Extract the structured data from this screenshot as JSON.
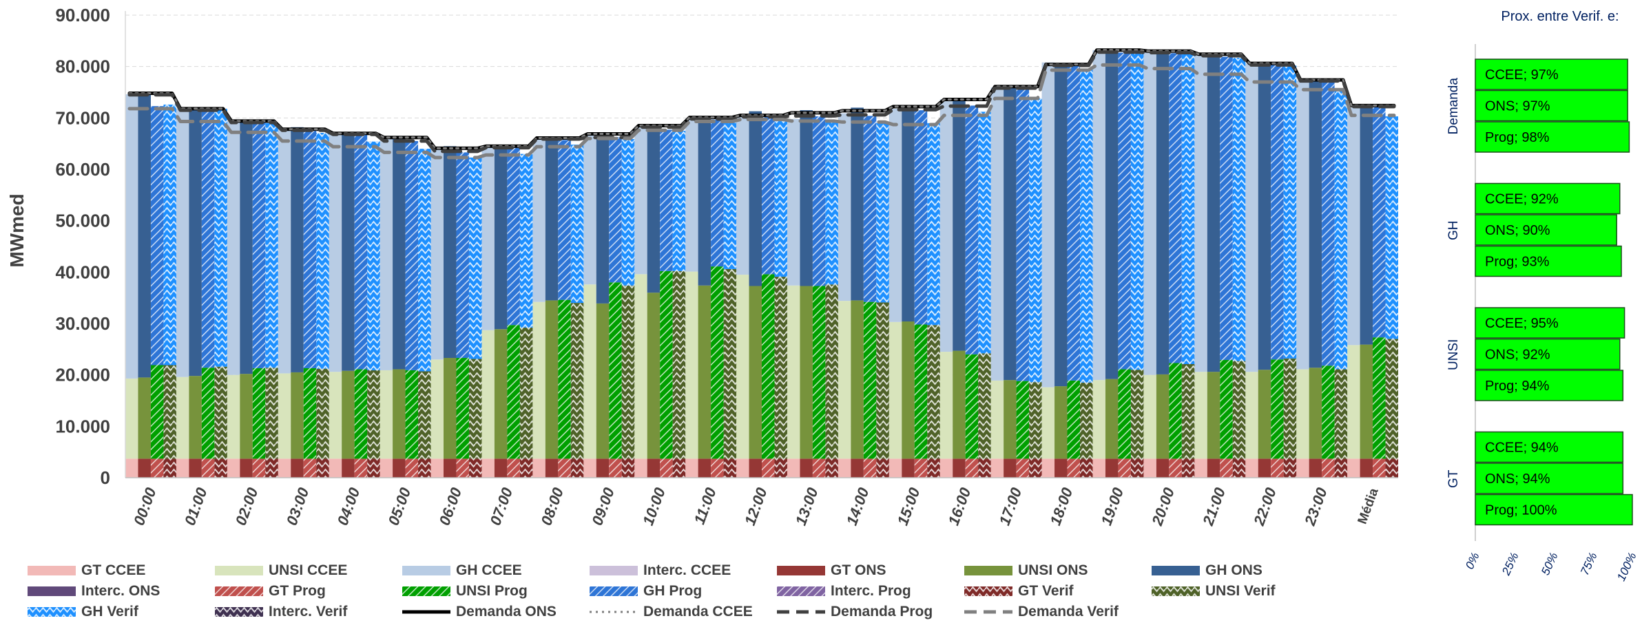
{
  "chart_data": {
    "type": "bar",
    "ylabel": "MWmed",
    "ylim": [
      0,
      90000
    ],
    "yticks": [
      "0",
      "10.000",
      "20.000",
      "30.000",
      "40.000",
      "50.000",
      "60.000",
      "70.000",
      "80.000",
      "90.000"
    ],
    "categories": [
      "00:00",
      "01:00",
      "02:00",
      "03:00",
      "04:00",
      "05:00",
      "06:00",
      "07:00",
      "08:00",
      "09:00",
      "10:00",
      "11:00",
      "12:00",
      "13:00",
      "14:00",
      "15:00",
      "16:00",
      "17:00",
      "18:00",
      "19:00",
      "20:00",
      "21:00",
      "22:00",
      "23:00",
      "Média"
    ],
    "grid": true,
    "series": [
      {
        "name": "GT CCEE",
        "stack": "CCEE",
        "color": "#f2b9b7",
        "values": [
          3700,
          3700,
          3700,
          3700,
          3700,
          3700,
          3700,
          3700,
          3700,
          3700,
          3700,
          3700,
          3700,
          3700,
          3700,
          3700,
          3700,
          3700,
          3700,
          3700,
          3700,
          3700,
          3700,
          3700,
          3700
        ]
      },
      {
        "name": "UNSI CCEE",
        "stack": "CCEE",
        "color": "#d8e4bc",
        "values": [
          15600,
          15900,
          16300,
          16600,
          16900,
          17200,
          19300,
          25000,
          30500,
          33900,
          35900,
          36400,
          35800,
          33700,
          30700,
          26600,
          20800,
          15200,
          13900,
          15300,
          16300,
          16900,
          16900,
          17400,
          22100
        ]
      },
      {
        "name": "GH CCEE",
        "stack": "CCEE",
        "color": "#b8cce4",
        "values": [
          55300,
          52200,
          49400,
          47700,
          46500,
          45300,
          41200,
          35600,
          31600,
          29100,
          28700,
          29800,
          30800,
          32400,
          36500,
          41500,
          49100,
          57000,
          63200,
          64200,
          63200,
          62000,
          60000,
          56200,
          46200
        ]
      },
      {
        "name": "Interc. CCEE",
        "stack": "CCEE",
        "color": "#ccc0da",
        "values": [
          0,
          0,
          0,
          0,
          0,
          0,
          0,
          0,
          0,
          0,
          0,
          0,
          0,
          0,
          0,
          0,
          0,
          0,
          0,
          0,
          0,
          0,
          0,
          0,
          0
        ]
      },
      {
        "name": "GT ONS",
        "stack": "ONS",
        "color": "#953735",
        "values": [
          3700,
          3700,
          3700,
          3700,
          3700,
          3700,
          3700,
          3700,
          3700,
          3700,
          3700,
          3700,
          3700,
          3700,
          3700,
          3700,
          3700,
          3700,
          3700,
          3700,
          3700,
          3700,
          3700,
          3700,
          3700
        ]
      },
      {
        "name": "UNSI ONS",
        "stack": "ONS",
        "color": "#77933c",
        "values": [
          15800,
          16100,
          16500,
          16800,
          17100,
          17400,
          19600,
          25200,
          30800,
          30200,
          32300,
          33700,
          33600,
          33600,
          30800,
          26700,
          21000,
          15300,
          14100,
          15500,
          16400,
          16900,
          17300,
          17700,
          22200
        ]
      },
      {
        "name": "GH ONS",
        "stack": "ONS",
        "color": "#376092",
        "values": [
          55500,
          52200,
          49400,
          47700,
          46500,
          45300,
          41200,
          35600,
          31900,
          32300,
          32700,
          32800,
          34000,
          34200,
          37500,
          41900,
          48700,
          57300,
          62900,
          64100,
          63000,
          62000,
          59700,
          56200,
          46600
        ]
      },
      {
        "name": "Interc. ONS",
        "stack": "ONS",
        "color": "#60497a",
        "values": [
          0,
          0,
          0,
          0,
          0,
          0,
          0,
          0,
          0,
          0,
          0,
          0,
          0,
          0,
          0,
          0,
          0,
          0,
          0,
          0,
          0,
          0,
          0,
          0,
          0
        ]
      },
      {
        "name": "GT Prog",
        "stack": "Prog",
        "color": "#c0504d",
        "values": [
          3700,
          3700,
          3700,
          3700,
          3700,
          3700,
          3700,
          3700,
          3700,
          3700,
          3700,
          3700,
          3700,
          3700,
          3700,
          3700,
          3700,
          3700,
          3700,
          3700,
          3700,
          3700,
          3700,
          3700,
          3700
        ]
      },
      {
        "name": "UNSI Prog",
        "stack": "Prog",
        "color": "#00a000",
        "values": [
          18200,
          17700,
          17600,
          17600,
          17400,
          17200,
          19600,
          26000,
          30900,
          34300,
          36500,
          37400,
          35900,
          33600,
          30500,
          26100,
          20300,
          15100,
          15200,
          17400,
          18600,
          19200,
          19300,
          18100,
          23600
        ]
      },
      {
        "name": "GH Prog",
        "stack": "Prog",
        "color": "#2e75d6",
        "values": [
          50400,
          50200,
          47800,
          46300,
          45700,
          44600,
          40000,
          34500,
          31100,
          28300,
          27500,
          28600,
          30900,
          33000,
          36200,
          41700,
          48400,
          56700,
          61400,
          61600,
          60300,
          59000,
          57400,
          55300,
          45000
        ]
      },
      {
        "name": "Interc. Prog",
        "stack": "Prog",
        "color": "#8064a2",
        "values": [
          0,
          0,
          0,
          0,
          0,
          0,
          0,
          0,
          0,
          0,
          0,
          0,
          0,
          0,
          0,
          0,
          0,
          0,
          0,
          0,
          0,
          0,
          0,
          0,
          0
        ]
      },
      {
        "name": "GT Verif",
        "stack": "Verif",
        "color": "#7f2a28",
        "values": [
          3700,
          3700,
          3700,
          3700,
          3700,
          3700,
          3700,
          3700,
          3700,
          3700,
          3700,
          3700,
          3700,
          3700,
          3700,
          3700,
          3700,
          3700,
          3700,
          3700,
          3700,
          3700,
          3700,
          3700,
          3700
        ]
      },
      {
        "name": "UNSI Verif",
        "stack": "Verif",
        "color": "#4f6228",
        "values": [
          18200,
          17900,
          17700,
          17500,
          17200,
          17000,
          19400,
          25500,
          30300,
          33700,
          36500,
          36900,
          35400,
          33900,
          30400,
          26000,
          20500,
          14900,
          14800,
          17300,
          18400,
          19000,
          19500,
          17400,
          23300
        ]
      },
      {
        "name": "GH Verif",
        "stack": "Verif",
        "color": "#1e90ff",
        "values": [
          50700,
          50200,
          47600,
          45900,
          44500,
          43300,
          39200,
          33800,
          30800,
          28500,
          27300,
          28500,
          30700,
          31900,
          34900,
          39300,
          47000,
          55200,
          61000,
          61800,
          60800,
          59000,
          57000,
          54400,
          43300
        ]
      },
      {
        "name": "Interc. Verif",
        "stack": "Verif",
        "color": "#3f3151",
        "values": [
          0,
          0,
          0,
          0,
          0,
          0,
          0,
          0,
          0,
          0,
          0,
          0,
          0,
          0,
          0,
          0,
          0,
          0,
          0,
          0,
          0,
          0,
          0,
          0,
          0
        ]
      }
    ],
    "lines": [
      {
        "name": "Demanda ONS",
        "color": "#000000",
        "style": "solid",
        "values": [
          74800,
          71800,
          69400,
          67800,
          67000,
          66200,
          64100,
          64500,
          66100,
          66900,
          68500,
          70100,
          70500,
          71000,
          71400,
          72200,
          73600,
          76100,
          80400,
          83200,
          83000,
          82400,
          80600,
          77400,
          72400
        ]
      },
      {
        "name": "Demanda CCEE",
        "color": "#7f7f7f",
        "style": "dotted",
        "values": [
          74800,
          71800,
          69400,
          67800,
          67000,
          66200,
          64100,
          64500,
          66100,
          66900,
          68500,
          70100,
          70500,
          71000,
          71400,
          72200,
          73600,
          76100,
          80400,
          83200,
          83000,
          82400,
          80600,
          77400,
          72400
        ]
      },
      {
        "name": "Demanda Prog",
        "color": "#404040",
        "style": "dashed",
        "values": [
          74500,
          71500,
          69100,
          67600,
          66800,
          65500,
          63500,
          64200,
          65900,
          66200,
          68200,
          69800,
          70200,
          70400,
          70600,
          71600,
          72300,
          75800,
          80200,
          82800,
          82700,
          82100,
          80300,
          77200,
          72200
        ]
      },
      {
        "name": "Demanda Verif",
        "color": "#808080",
        "style": "dashed",
        "values": [
          71800,
          69300,
          67200,
          65500,
          64400,
          63300,
          62300,
          62800,
          64400,
          66000,
          67600,
          69300,
          69700,
          69400,
          69200,
          68700,
          70500,
          73800,
          79300,
          80300,
          79600,
          78500,
          77000,
          75500,
          70500
        ]
      }
    ],
    "side_chart": {
      "title": "Prox. entre Verif. e:",
      "type": "bar",
      "orientation": "horizontal",
      "xlim": [
        0,
        100
      ],
      "xticks": [
        "0%",
        "25%",
        "50%",
        "75%",
        "100%"
      ],
      "bar_color": "#00ff00",
      "groups": [
        {
          "name": "Demanda",
          "bars": [
            {
              "label": "CCEE; 97%",
              "value": 97
            },
            {
              "label": "ONS; 97%",
              "value": 97
            },
            {
              "label": "Prog; 98%",
              "value": 98
            }
          ]
        },
        {
          "name": "GH",
          "bars": [
            {
              "label": "CCEE; 92%",
              "value": 92
            },
            {
              "label": "ONS; 90%",
              "value": 90
            },
            {
              "label": "Prog; 93%",
              "value": 93
            }
          ]
        },
        {
          "name": "UNSI",
          "bars": [
            {
              "label": "CCEE; 95%",
              "value": 95
            },
            {
              "label": "ONS; 92%",
              "value": 92
            },
            {
              "label": "Prog; 94%",
              "value": 94
            }
          ]
        },
        {
          "name": "GT",
          "bars": [
            {
              "label": "CCEE; 94%",
              "value": 94
            },
            {
              "label": "ONS; 94%",
              "value": 94
            },
            {
              "label": "Prog; 100%",
              "value": 100
            }
          ]
        }
      ]
    }
  }
}
